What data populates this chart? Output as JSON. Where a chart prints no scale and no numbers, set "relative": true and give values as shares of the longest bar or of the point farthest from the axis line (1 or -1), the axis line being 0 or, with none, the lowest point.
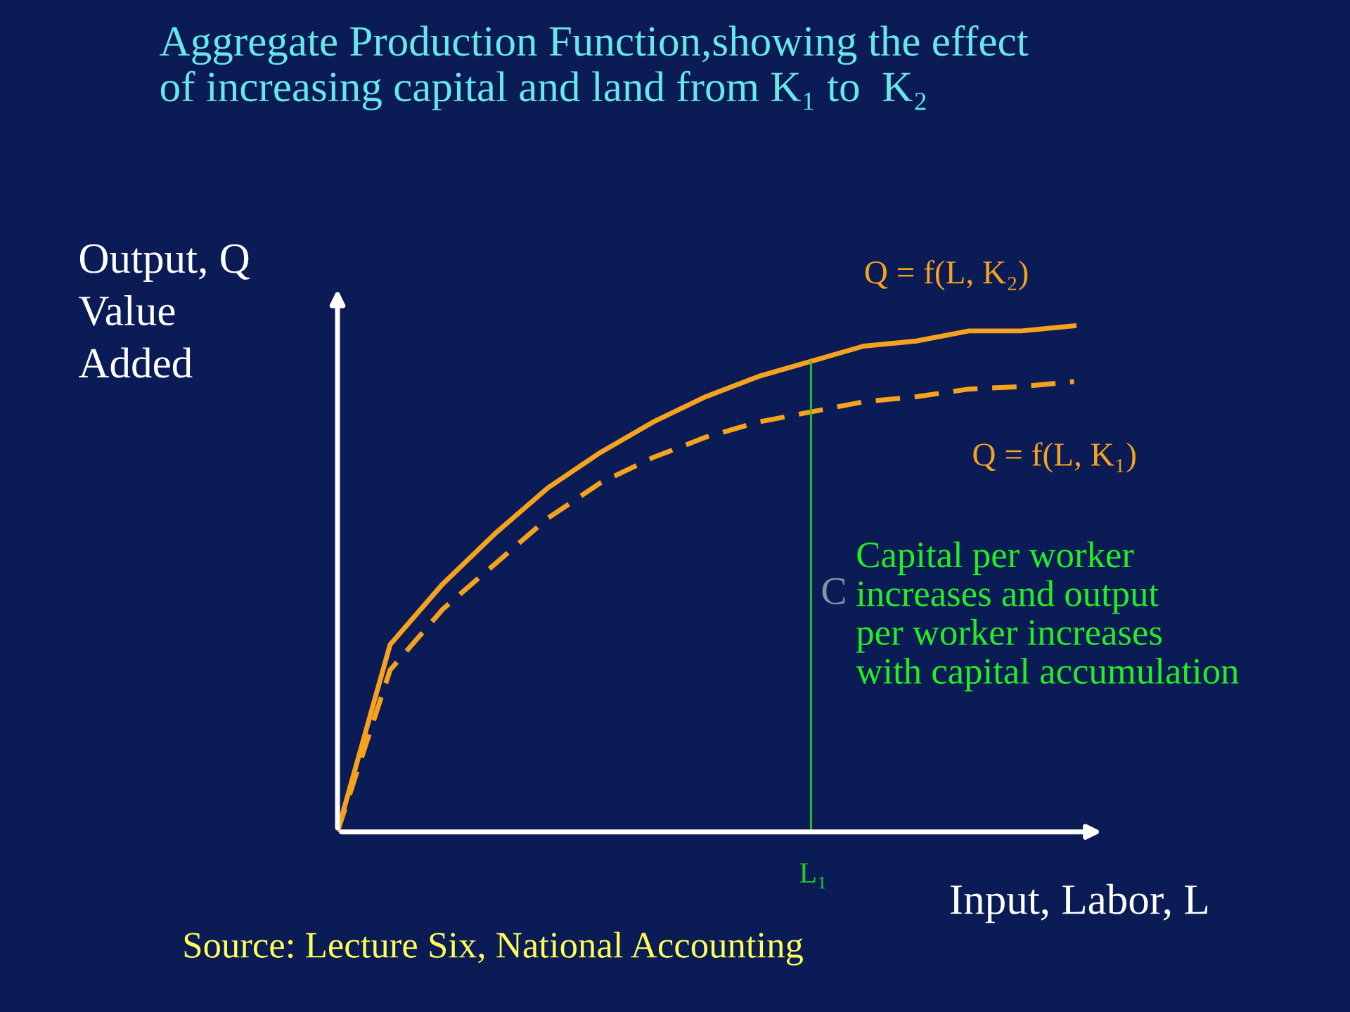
{
  "chart_data": {
    "type": "line",
    "relative": true,
    "title": "Aggregate Production Function,showing the effect\nof increasing capital and land from K₁ to  K₂",
    "ylabel": "Output, Q\nValue\nAdded",
    "xlabel": "Input, Labor, L",
    "categories": [
      null,
      null,
      null,
      null,
      null,
      null,
      null,
      null,
      null,
      null,
      null,
      null,
      null,
      null,
      null
    ],
    "series": [
      {
        "name": "Q = f(L, K₂)",
        "color": "#f5a21e",
        "line_style": "solid",
        "values": [
          0,
          0.37,
          0.49,
          0.59,
          0.68,
          0.75,
          0.81,
          0.86,
          0.9,
          0.93,
          0.96,
          0.97,
          0.99,
          0.99,
          1
        ]
      },
      {
        "name": "Q = f(L, K₁)",
        "color": "#f5a21e",
        "line_style": "dashed",
        "values": [
          0,
          0.32,
          0.44,
          0.53,
          0.62,
          0.69,
          0.74,
          0.78,
          0.81,
          0.83,
          0.85,
          0.86,
          0.875,
          0.88,
          0.89
        ]
      }
    ],
    "annotations": [
      "Capital per worker\nincreases and output\nper worker increases\nwith capital accumulation",
      "C",
      "Source: Lecture Six, National Accounting",
      "L₁"
    ],
    "grid": false,
    "legend": false,
    "marker": "none"
  }
}
